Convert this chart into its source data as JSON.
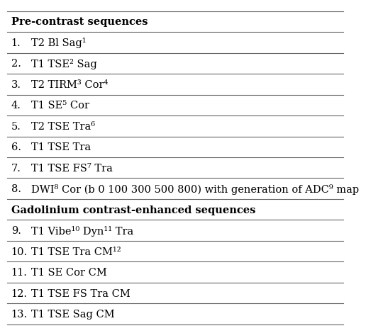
{
  "header1": "Pre-contrast sequences",
  "header2": "Gadolinium contrast-enhanced sequences",
  "rows": [
    {
      "num": "1.",
      "text": "T2 Bl Sag¹"
    },
    {
      "num": "2.",
      "text": "T1 TSE² Sag"
    },
    {
      "num": "3.",
      "text": "T2 TIRM³ Cor⁴"
    },
    {
      "num": "4.",
      "text": "T1 SE⁵ Cor"
    },
    {
      "num": "5.",
      "text": "T2 TSE Tra⁶"
    },
    {
      "num": "6.",
      "text": "T1 TSE Tra"
    },
    {
      "num": "7.",
      "text": "T1 TSE FS⁷ Tra"
    },
    {
      "num": "8.",
      "text": "DWI⁸ Cor (b 0 100 300 500 800) with generation of ADC⁹ map"
    }
  ],
  "rows2": [
    {
      "num": "9.",
      "text": "T1 Vibe¹⁰ Dyn¹¹ Tra"
    },
    {
      "num": "10.",
      "text": "T1 TSE Tra CM¹²"
    },
    {
      "num": "11.",
      "text": "T1 SE Cor CM"
    },
    {
      "num": "12.",
      "text": "T1 TSE FS Tra CM"
    },
    {
      "num": "13.",
      "text": "T1 TSE Sag CM"
    }
  ],
  "bg_color": "#ffffff",
  "text_color": "#000000",
  "header_fontsize": 10.5,
  "row_fontsize": 10.5,
  "fig_width": 4.74,
  "fig_height": 4.51
}
